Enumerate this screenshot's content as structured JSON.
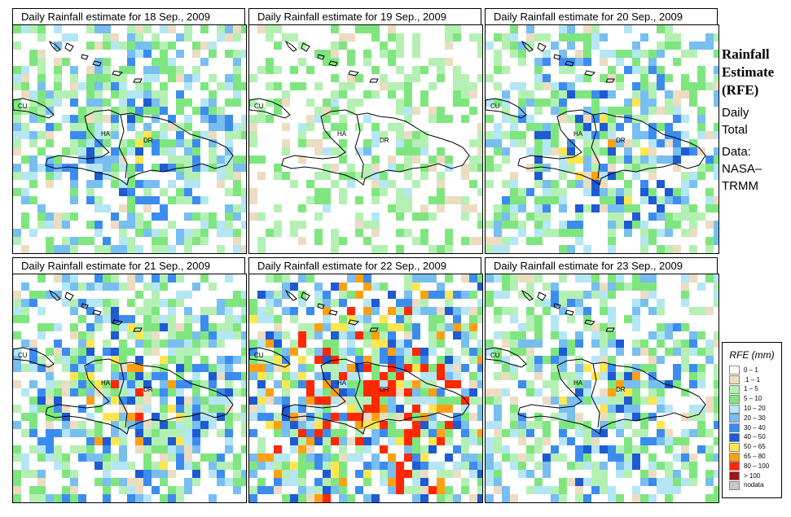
{
  "panels": [
    {
      "title": "Daily Rainfall estimate for  18 Sep., 2009",
      "seed": 18,
      "wet": 0.45
    },
    {
      "title": "Daily Rainfall estimate for  19 Sep., 2009",
      "seed": 19,
      "wet": 0.25
    },
    {
      "title": "Daily Rainfall estimate for  20 Sep., 2009",
      "seed": 20,
      "wet": 0.5
    },
    {
      "title": "Daily Rainfall estimate for  21 Sep., 2009",
      "seed": 21,
      "wet": 0.55
    },
    {
      "title": "Daily Rainfall estimate for  22 Sep., 2009",
      "seed": 22,
      "wet": 0.75
    },
    {
      "title": "Daily Rainfall estimate for  23 Sep., 2009",
      "seed": 23,
      "wet": 0.5
    }
  ],
  "map_labels": {
    "cuba": "CU",
    "haiti": "HA",
    "dominican_republic": "DR"
  },
  "side": {
    "title_line1": "Rainfall",
    "title_line2": "Estimate",
    "title_line3": "(RFE)",
    "daily": "Daily",
    "total": "Total",
    "data_label": "Data:",
    "source_line1": "NASA–",
    "source_line2": "TRMM"
  },
  "legend": {
    "title": "RFE (mm)",
    "items": [
      {
        "label": "0 – 1",
        "color": "#ffffff"
      },
      {
        "label": ".1 – 1",
        "color": "#ecdcc2"
      },
      {
        "label": "1 – 5",
        "color": "#b4f0b4"
      },
      {
        "label": "5 – 10",
        "color": "#7fe67f"
      },
      {
        "label": "10 – 20",
        "color": "#b4e6f5"
      },
      {
        "label": "20 – 30",
        "color": "#78bef0"
      },
      {
        "label": "30 – 40",
        "color": "#3c8cf0"
      },
      {
        "label": "40 – 50",
        "color": "#1e5ad2"
      },
      {
        "label": "50 – 65",
        "color": "#ffe650"
      },
      {
        "label": "65 – 80",
        "color": "#ffa014"
      },
      {
        "label": "80 – 100",
        "color": "#ff2800"
      },
      {
        "label": "> 100",
        "color": "#a01414"
      },
      {
        "label": "nodata",
        "color": "#c8c8c8"
      }
    ]
  }
}
